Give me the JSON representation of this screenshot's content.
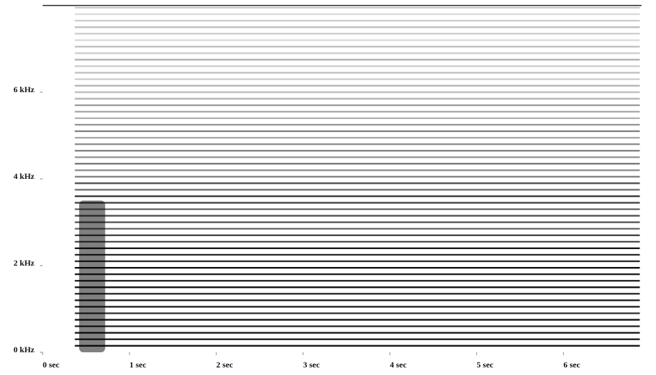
{
  "chart_data": {
    "type": "spectrogram",
    "xlim": [
      0,
      6.9
    ],
    "ylim": [
      0,
      8
    ],
    "xticks": [
      {
        "value": 0,
        "label": "0 sec"
      },
      {
        "value": 1,
        "label": "1 sec"
      },
      {
        "value": 2,
        "label": "2 sec"
      },
      {
        "value": 3,
        "label": "3 sec"
      },
      {
        "value": 4,
        "label": "4 sec"
      },
      {
        "value": 5,
        "label": "5 sec"
      },
      {
        "value": 6,
        "label": "6 sec"
      }
    ],
    "yticks": [
      {
        "value": 0,
        "label": "0 kHz"
      },
      {
        "value": 2,
        "label": "2 kHz"
      },
      {
        "value": 4,
        "label": "4 kHz"
      },
      {
        "value": 6,
        "label": "6 kHz"
      }
    ],
    "color": "#000000",
    "x": [
      0.37,
      6.88
    ],
    "burst": {
      "x": [
        0.42,
        0.72
      ],
      "top": 3.5,
      "color": "#555555"
    },
    "harmonics": {
      "frequency": [
        0.15,
        0.3,
        0.45,
        0.6,
        0.75,
        0.9,
        1.05,
        1.2,
        1.35,
        1.5,
        1.65,
        1.8,
        1.95,
        2.1,
        2.25,
        2.4,
        2.55,
        2.7,
        2.85,
        3,
        3.15,
        3.3,
        3.45,
        3.6,
        3.75,
        3.9,
        4.05,
        4.2,
        4.35,
        4.5,
        4.65,
        4.8,
        4.95,
        5.1,
        5.25,
        5.4,
        5.55,
        5.7,
        5.85,
        6,
        6.15,
        6.3,
        6.45,
        6.6,
        6.75,
        6.9,
        7.05,
        7.2,
        7.35,
        7.5,
        7.65,
        7.8,
        7.95
      ],
      "intensity": [
        0.95,
        0.9,
        0.92,
        0.85,
        0.9,
        0.8,
        0.88,
        0.9,
        0.85,
        0.92,
        0.88,
        0.9,
        0.95,
        0.85,
        0.8,
        0.92,
        0.7,
        0.75,
        0.6,
        0.65,
        0.7,
        0.6,
        0.75,
        0.8,
        0.55,
        0.7,
        0.5,
        0.45,
        0.55,
        0.4,
        0.5,
        0.45,
        0.35,
        0.5,
        0.4,
        0.3,
        0.35,
        0.4,
        0.3,
        0.25,
        0.3,
        0.2,
        0.25,
        0.2,
        0.3,
        0.2,
        0.25,
        0.15,
        0.2,
        0.25,
        0.2,
        0.15,
        0.2
      ]
    }
  }
}
